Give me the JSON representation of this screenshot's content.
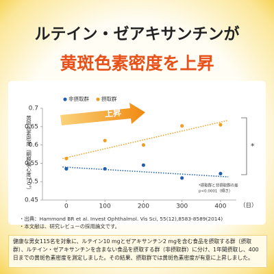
{
  "header": {
    "line1": "ルテイン・ゼアキサンチンが",
    "line2": "黄斑色素密度を上昇"
  },
  "chart_data": {
    "type": "scatter",
    "y_label": "黄斑色素密度（網膜偏心度1.0°）",
    "x_unit": "（日）",
    "x": [
      0,
      100,
      200,
      300,
      400
    ],
    "series": [
      {
        "name": "非摂取群",
        "color": "#1f5fb0",
        "values": [
          0.535,
          0.535,
          0.545,
          0.51,
          0.522
        ],
        "trend": {
          "x": [
            -10,
            420
          ],
          "values": [
            0.54,
            0.513
          ]
        }
      },
      {
        "name": "摂取群",
        "color": "#f0a020",
        "values": [
          0.563,
          0.612,
          0.6,
          0.652,
          0.655
        ],
        "trend": {
          "x": [
            -10,
            420
          ],
          "values": [
            0.563,
            0.667
          ]
        }
      }
    ],
    "xlim": [
      -62,
      441
    ],
    "xticks": [
      0,
      100,
      200,
      300,
      400
    ],
    "ylim": [
      0.45,
      0.7
    ],
    "yticks": [
      0.45,
      0.5,
      0.55,
      0.6,
      0.65,
      0.7
    ],
    "annotation_arrow": "上昇",
    "significance_mark": "*",
    "significance_note": [
      "*摂取群と非摂取群の差",
      "p<0.0001（傾き）"
    ]
  },
  "footnotes": [
    "・出典：Hammond BR et al. Invest Ophthalmol. Vis Sci, 55(12),8583-8589(2014)",
    "・本文献は、研究レビューの採用論文です。"
  ],
  "summary": "健康な男女115名を対象に、ルテイン10 mgとゼアキサンチン2 mgを含む食品を摂取する群（摂取群）、ルテイン・ゼアキサンチンを含まない食品を摂取する群（非摂取群）に分け、1年間摂取し、400日までの黄斑色素密度を測定しました。その結果、摂取群では黄斑色素密度が有意に上昇しました。"
}
